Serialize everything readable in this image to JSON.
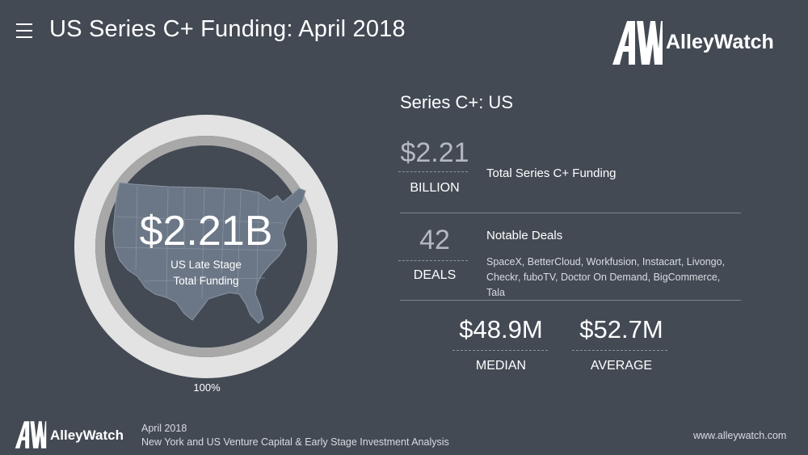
{
  "header": {
    "title": "US Series C+ Funding: April 2018",
    "menu_icon": "hamburger-menu-icon",
    "logo_text": "AlleyWatch"
  },
  "ring": {
    "value": "$2.21B",
    "caption_line1": "US Late Stage",
    "caption_line2": "Total Funding",
    "percent_label": "100%",
    "fill_fraction": 1.0,
    "map_icon": "us-map-icon"
  },
  "panel": {
    "title": "Series C+: US",
    "funding": {
      "value": "$2.21",
      "unit": "BILLION",
      "label": "Total Series C+ Funding"
    },
    "deals": {
      "value": "42",
      "unit": "DEALS",
      "label": "Notable Deals",
      "list": "SpaceX, BetterCloud, Workfusion, Instacart, Livongo, Checkr, fuboTV, Doctor On Demand, BigCommerce, Tala"
    },
    "median": {
      "value": "$48.9M",
      "unit": "MEDIAN"
    },
    "average": {
      "value": "$52.7M",
      "unit": "AVERAGE"
    }
  },
  "footer": {
    "logo_text": "AlleyWatch",
    "date": "April 2018",
    "description": "New York and US Venture Capital & Early Stage Investment Analysis",
    "url": "www.alleywatch.com"
  },
  "colors": {
    "background": "#434a54",
    "ring_outer": "#e3e3e3",
    "ring_inner": "#a8a8a8",
    "map_fill": "#6b7786"
  }
}
